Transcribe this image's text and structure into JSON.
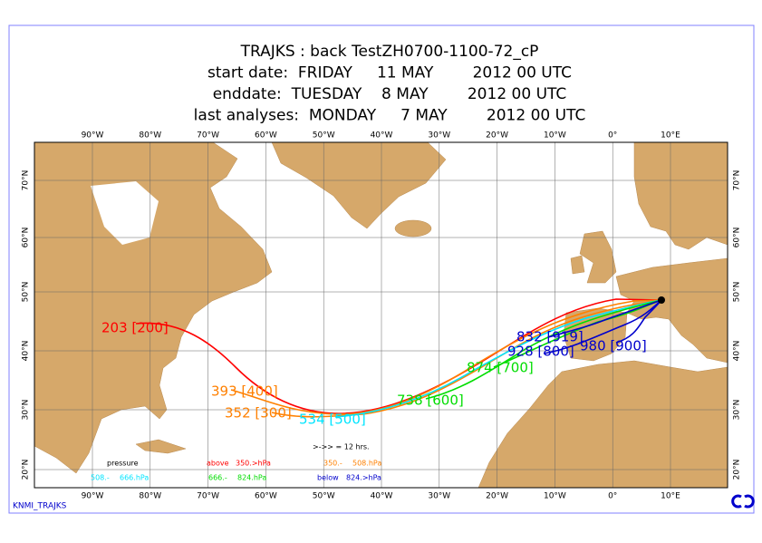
{
  "header": {
    "title_lines": [
      "TRAJKS : back TestZH0700-1100-72_cP",
      "start date:  FRIDAY     11 MAY        2012 00 UTC",
      "enddate:  TUESDAY    8 MAY        2012 00 UTC",
      "last analyses:  MONDAY     7 MAY        2012 00 UTC"
    ]
  },
  "map": {
    "longitude_labels": [
      "90°W",
      "80°W",
      "70°W",
      "60°W",
      "50°W",
      "40°W",
      "30°W",
      "20°W",
      "10°W",
      "0°",
      "10°E"
    ],
    "latitude_labels": [
      "70°N",
      "60°N",
      "50°N",
      "40°N",
      "30°N",
      "20°N"
    ],
    "trajectory_labels": [
      {
        "text": "203 [200]",
        "color": "#ff0000"
      },
      {
        "text": "393 [400]",
        "color": "#ff8000"
      },
      {
        "text": "352 [300]",
        "color": "#ff8000"
      },
      {
        "text": "534 [500]",
        "color": "#00e5ff"
      },
      {
        "text": "738 [600]",
        "color": "#00dd00"
      },
      {
        "text": "874 [700]",
        "color": "#00dd00"
      },
      {
        "text": "832 [919]",
        "color": "#0000cc"
      },
      {
        "text": "928 [800]",
        "color": "#0000cc"
      },
      {
        "text": "980 [900]",
        "color": "#0000cc"
      }
    ]
  },
  "legend": {
    "pressure": "pressure",
    "arrow_note": ">->> = 12 hrs.",
    "items": [
      {
        "prefix": "above",
        "range": "350.>hPa",
        "color": "#ff0000"
      },
      {
        "prefix": "350.-",
        "range": "508.hPa",
        "color": "#ff8000"
      },
      {
        "prefix": "508.-",
        "range": "666.hPa",
        "color": "#00e5ff"
      },
      {
        "prefix": "666.-",
        "range": "824.hPa",
        "color": "#00dd00"
      },
      {
        "prefix": "below",
        "range": "824.>hPa",
        "color": "#0000cc"
      }
    ]
  },
  "footer": {
    "source": "KNMI_TRAJKS"
  }
}
